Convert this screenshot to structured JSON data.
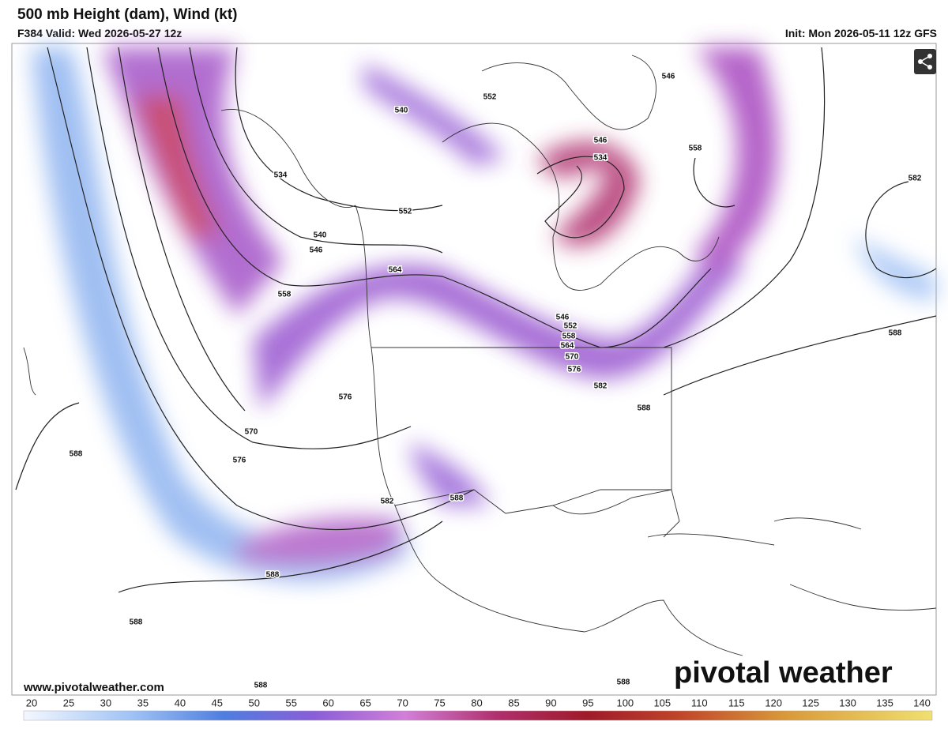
{
  "header": {
    "title": "500 mb Height (dam), Wind (kt)",
    "valid": "F384 Valid: Wed 2026-05-27 12z",
    "init": "Init: Mon 2026-05-11 12z GFS"
  },
  "map": {
    "contour_labels": [
      "540",
      "552",
      "546",
      "534",
      "546",
      "558",
      "582",
      "534",
      "552",
      "540",
      "546",
      "558",
      "564",
      "546",
      "552",
      "558",
      "564",
      "570",
      "576",
      "582",
      "588",
      "588",
      "576",
      "570",
      "576",
      "582",
      "588",
      "588",
      "588",
      "588",
      "588",
      "588"
    ]
  },
  "footer": {
    "website": "www.pivotalweather.com",
    "logo": "pivotal weather"
  },
  "colorbar": {
    "labels": [
      20,
      25,
      30,
      35,
      40,
      45,
      50,
      55,
      60,
      65,
      70,
      75,
      80,
      85,
      90,
      95,
      100,
      105,
      110,
      115,
      120,
      125,
      130,
      135,
      140
    ]
  }
}
